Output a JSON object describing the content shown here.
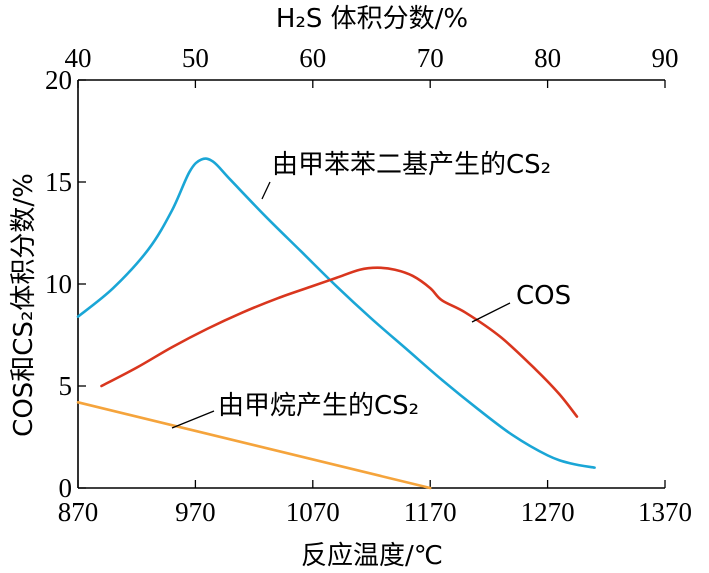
{
  "chart_data": {
    "type": "line",
    "xlabel": "反应温度/℃",
    "x2label": "H₂S 体积分数/%",
    "ylabel": "COS和CS₂体积分数/%",
    "xlim": [
      870,
      1370
    ],
    "ylim": [
      0,
      20
    ],
    "x2lim": [
      40,
      90
    ],
    "x_ticks": [
      "870",
      "970",
      "1070",
      "1170",
      "1270",
      "1370"
    ],
    "x2_ticks": [
      "40",
      "50",
      "60",
      "70",
      "80",
      "90"
    ],
    "y_ticks": [
      "0",
      "5",
      "10",
      "15",
      "20"
    ],
    "grid": false,
    "series": [
      {
        "name": "由甲苯苯二基产生的CS₂",
        "color": "#1aa6d6",
        "x": [
          870,
          900,
          930,
          950,
          965,
          975,
          985,
          1000,
          1030,
          1060,
          1090,
          1120,
          1150,
          1180,
          1210,
          1240,
          1270,
          1290,
          1310
        ],
        "y": [
          8.4,
          9.8,
          11.7,
          13.6,
          15.5,
          16.1,
          16.0,
          15.1,
          13.3,
          11.6,
          9.9,
          8.3,
          6.8,
          5.3,
          3.9,
          2.6,
          1.6,
          1.2,
          1.0
        ]
      },
      {
        "name": "COS",
        "color": "#d9361e",
        "x": [
          890,
          920,
          950,
          980,
          1010,
          1040,
          1070,
          1090,
          1110,
          1125,
          1140,
          1155,
          1170,
          1180,
          1200,
          1230,
          1260,
          1280,
          1295
        ],
        "y": [
          5.0,
          5.9,
          6.9,
          7.8,
          8.6,
          9.3,
          9.9,
          10.3,
          10.7,
          10.8,
          10.7,
          10.4,
          9.8,
          9.2,
          8.6,
          7.4,
          5.8,
          4.6,
          3.5
        ]
      },
      {
        "name": "由甲烷产生的CS₂",
        "color": "#f5a43c",
        "x": [
          870,
          1170
        ],
        "y": [
          4.2,
          0
        ]
      }
    ]
  }
}
